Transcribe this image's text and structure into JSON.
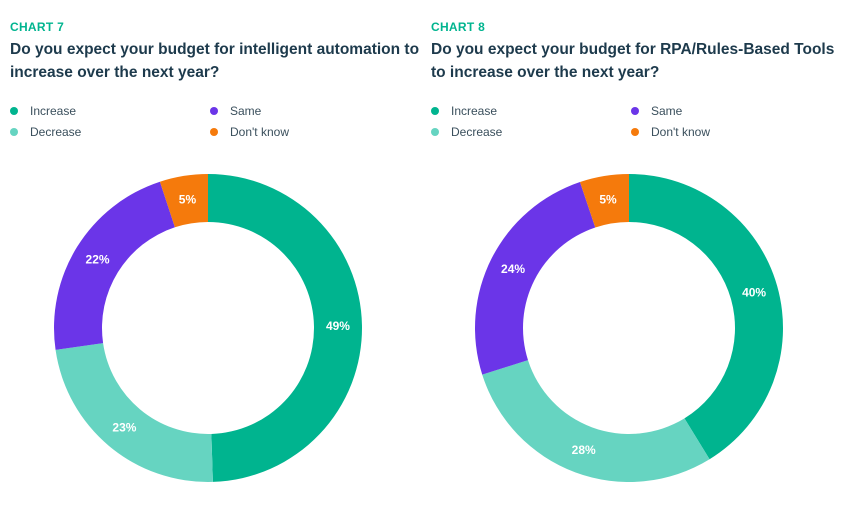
{
  "colors": {
    "increase": "#00b48f",
    "decrease": "#66d4c1",
    "same": "#6b35e8",
    "dont_know": "#f57a0c",
    "heading_label": "#00b48f",
    "title": "#1d3a4c"
  },
  "chart_data": [
    {
      "type": "pie",
      "label": "CHART 7",
      "title": "Do you expect your budget for intelligent automation to increase over the next year?",
      "legend": [
        "Increase",
        "Decrease",
        "Same",
        "Don't know"
      ],
      "slices": [
        {
          "name": "Increase",
          "value": 49,
          "label": "49%"
        },
        {
          "name": "Decrease",
          "value": 23,
          "label": "23%"
        },
        {
          "name": "Same",
          "value": 22,
          "label": "22%"
        },
        {
          "name": "Don't know",
          "value": 5,
          "label": "5%"
        }
      ]
    },
    {
      "type": "pie",
      "label": "CHART 8",
      "title": "Do you expect your budget for RPA/Rules-Based Tools to increase over the next year?",
      "legend": [
        "Increase",
        "Decrease",
        "Same",
        "Don't know"
      ],
      "slices": [
        {
          "name": "Increase",
          "value": 40,
          "label": "40%"
        },
        {
          "name": "Decrease",
          "value": 28,
          "label": "28%"
        },
        {
          "name": "Same",
          "value": 24,
          "label": "24%"
        },
        {
          "name": "Don't know",
          "value": 5,
          "label": "5%"
        }
      ]
    }
  ]
}
